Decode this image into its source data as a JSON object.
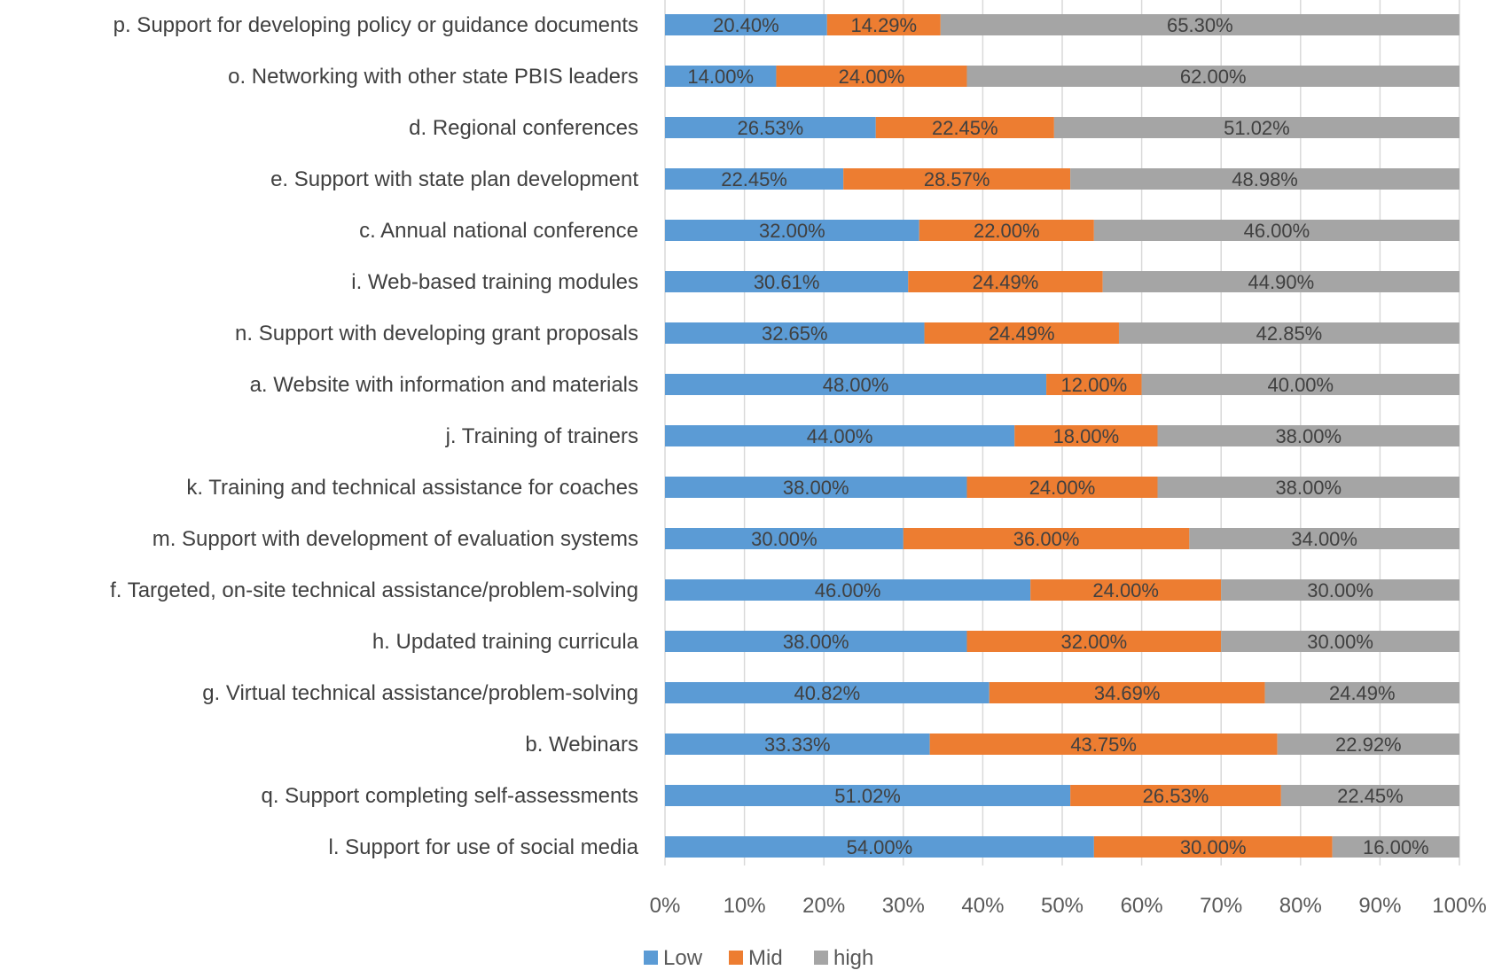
{
  "chart_data": {
    "type": "bar",
    "orientation": "horizontal",
    "stacked": "percent",
    "title": "",
    "xlabel": "",
    "ylabel": "",
    "xlim": [
      0,
      100
    ],
    "x_ticks": [
      "0%",
      "10%",
      "20%",
      "30%",
      "40%",
      "50%",
      "60%",
      "70%",
      "80%",
      "90%",
      "100%"
    ],
    "grid": "vertical",
    "legend_position": "bottom",
    "categories": [
      "p. Support for developing policy or guidance documents",
      "o. Networking with other state PBIS leaders",
      "d. Regional conferences",
      "e. Support with state plan development",
      "c. Annual national conference",
      "i. Web-based training modules",
      "n. Support with developing grant proposals",
      "a. Website with information and materials",
      "j. Training of trainers",
      "k. Training and technical assistance for coaches",
      "m. Support with development of evaluation systems",
      "f. Targeted, on-site technical assistance/problem-solving",
      "h. Updated training curricula",
      "g. Virtual technical assistance/problem-solving",
      "b. Webinars",
      "q. Support completing self-assessments",
      "l. Support for use of social media"
    ],
    "series": [
      {
        "name": "Low",
        "color": "#5b9bd5",
        "values": [
          20.4,
          14.0,
          26.53,
          22.45,
          32.0,
          30.61,
          32.65,
          48.0,
          44.0,
          38.0,
          30.0,
          46.0,
          38.0,
          40.82,
          33.33,
          51.02,
          54.0
        ],
        "labels": [
          "20.40%",
          "14.00%",
          "26.53%",
          "22.45%",
          "32.00%",
          "30.61%",
          "32.65%",
          "48.00%",
          "44.00%",
          "38.00%",
          "30.00%",
          "46.00%",
          "38.00%",
          "40.82%",
          "33.33%",
          "51.02%",
          "54.00%"
        ]
      },
      {
        "name": "Mid",
        "color": "#ed7d31",
        "values": [
          14.29,
          24.0,
          22.45,
          28.57,
          22.0,
          24.49,
          24.49,
          12.0,
          18.0,
          24.0,
          36.0,
          24.0,
          32.0,
          34.69,
          43.75,
          26.53,
          30.0
        ],
        "labels": [
          "14.29%",
          "24.00%",
          "22.45%",
          "28.57%",
          "22.00%",
          "24.49%",
          "24.49%",
          "12.00%",
          "18.00%",
          "24.00%",
          "36.00%",
          "24.00%",
          "32.00%",
          "34.69%",
          "43.75%",
          "26.53%",
          "30.00%"
        ]
      },
      {
        "name": "high",
        "color": "#a5a5a5",
        "values": [
          65.3,
          62.0,
          51.02,
          48.98,
          46.0,
          44.9,
          42.85,
          40.0,
          38.0,
          38.0,
          34.0,
          30.0,
          30.0,
          24.49,
          22.92,
          22.45,
          16.0
        ],
        "labels": [
          "65.30%",
          "62.00%",
          "51.02%",
          "48.98%",
          "46.00%",
          "44.90%",
          "42.85%",
          "40.00%",
          "38.00%",
          "38.00%",
          "34.00%",
          "30.00%",
          "30.00%",
          "24.49%",
          "22.92%",
          "22.45%",
          "16.00%"
        ]
      }
    ]
  }
}
